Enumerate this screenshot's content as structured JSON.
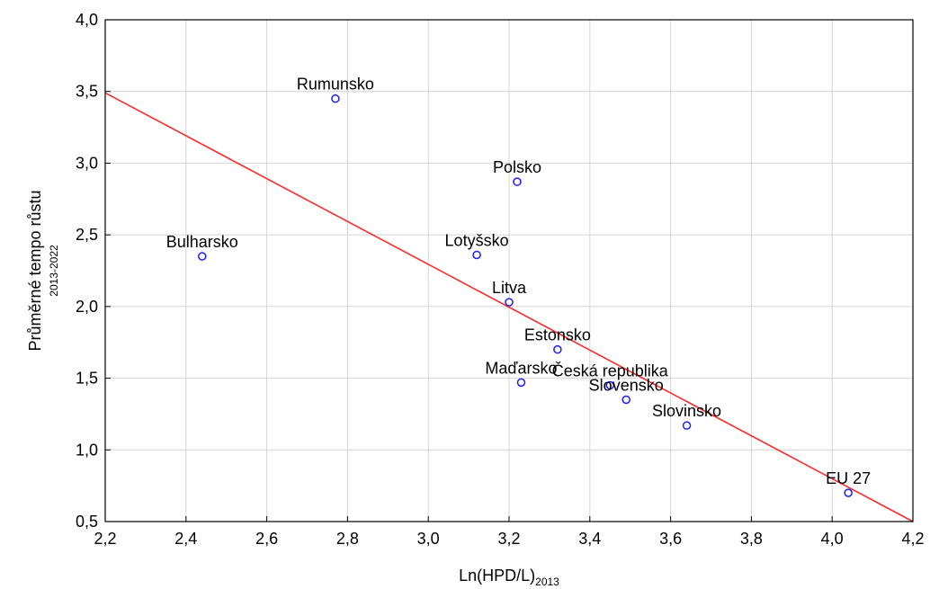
{
  "chart_data": {
    "type": "scatter",
    "title": "",
    "xlabel": "Ln(HPD/L)",
    "xlabel_sub": "2013",
    "ylabel": "Průměrné tempo růstu",
    "ylabel_sub": "2013-2022",
    "xlim": [
      2.2,
      4.2
    ],
    "ylim": [
      0.5,
      4.0
    ],
    "x_ticks": [
      "2,2",
      "2,4",
      "2,6",
      "2,8",
      "3,0",
      "3,2",
      "3,4",
      "3,6",
      "3,8",
      "4,0",
      "4,2"
    ],
    "y_ticks": [
      "0,5",
      "1,0",
      "1,5",
      "2,0",
      "2,5",
      "3,0",
      "3,5",
      "4,0"
    ],
    "grid": true,
    "legend": "none",
    "colors": {
      "points": "#1a1aff",
      "regression": "#ff2a2a",
      "grid": "#d4d4d4",
      "frame": "#000000"
    },
    "points": [
      {
        "label": "Rumunsko",
        "x": 2.77,
        "y": 3.45
      },
      {
        "label": "Polsko",
        "x": 3.22,
        "y": 2.87
      },
      {
        "label": "Bulharsko",
        "x": 2.44,
        "y": 2.35
      },
      {
        "label": "Lotyšsko",
        "x": 3.12,
        "y": 2.36
      },
      {
        "label": "Litva",
        "x": 3.2,
        "y": 2.03
      },
      {
        "label": "Estonsko",
        "x": 3.32,
        "y": 1.7
      },
      {
        "label": "Maďarsko",
        "x": 3.23,
        "y": 1.47
      },
      {
        "label": "Česká republika",
        "x": 3.45,
        "y": 1.45
      },
      {
        "label": "Slovensko",
        "x": 3.49,
        "y": 1.35
      },
      {
        "label": "Slovinsko",
        "x": 3.64,
        "y": 1.17
      },
      {
        "label": "EU 27",
        "x": 4.04,
        "y": 0.7
      }
    ],
    "regression_line": {
      "x": [
        2.2,
        4.2
      ],
      "y": [
        3.49,
        0.5
      ]
    }
  }
}
